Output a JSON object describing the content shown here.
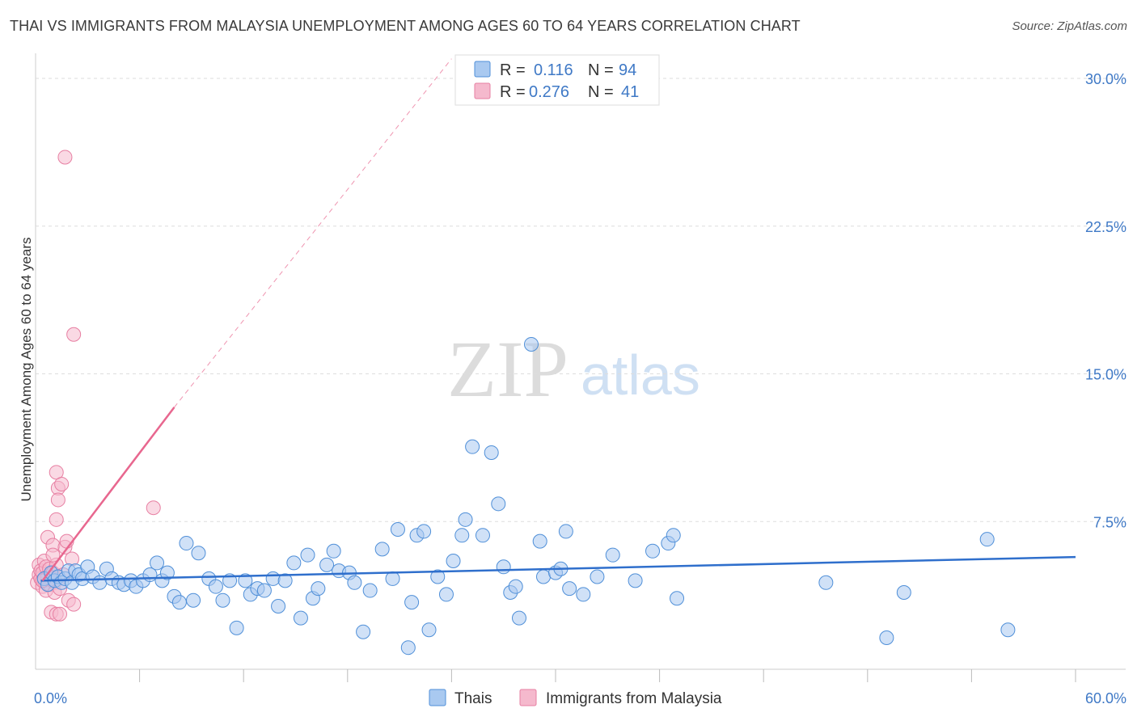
{
  "header": {
    "title": "THAI VS IMMIGRANTS FROM MALAYSIA UNEMPLOYMENT AMONG AGES 60 TO 64 YEARS CORRELATION CHART",
    "source": "Source: ZipAtlas.com"
  },
  "watermark": {
    "zip": "ZIP",
    "atlas": "atlas"
  },
  "colors": {
    "blue_fill": "#a9c9f0",
    "blue_stroke": "#4f8fd8",
    "blue_line": "#2f6fcc",
    "pink_fill": "#f5b9cd",
    "pink_stroke": "#e77fa2",
    "pink_line": "#e8678f",
    "grid": "#dddddd",
    "tick_text": "#3f79c6"
  },
  "legend": {
    "r_label": "R =",
    "n_label": "N =",
    "series1": {
      "r_value": "0.116",
      "n_value": "94"
    },
    "series2": {
      "r_value": "0.276",
      "n_value": "41"
    }
  },
  "chart_data": {
    "type": "scatter",
    "title": "THAI VS IMMIGRANTS FROM MALAYSIA UNEMPLOYMENT AMONG AGES 60 TO 64 YEARS CORRELATION CHART",
    "xlabel": "",
    "ylabel": "Unemployment Among Ages 60 to 64 years",
    "xlim": [
      0,
      60
    ],
    "ylim": [
      0,
      31
    ],
    "x_tick_labels": [
      "0.0%",
      "60.0%"
    ],
    "y_ticks": [
      7.5,
      15.0,
      22.5,
      30.0
    ],
    "y_tick_labels": [
      "7.5%",
      "15.0%",
      "22.5%",
      "30.0%"
    ],
    "grid": true,
    "legend_position": "top-center",
    "series": [
      {
        "name": "Thais",
        "r": 0.116,
        "n": 94,
        "trend": {
          "x": [
            0.3,
            60.0
          ],
          "y": [
            4.5,
            5.7
          ],
          "dashed_extension": false
        },
        "points": [
          [
            0.5,
            4.6
          ],
          [
            0.7,
            4.3
          ],
          [
            0.9,
            4.9
          ],
          [
            1.1,
            4.5
          ],
          [
            1.3,
            4.7
          ],
          [
            1.5,
            4.4
          ],
          [
            1.7,
            4.6
          ],
          [
            1.9,
            5.0
          ],
          [
            2.1,
            4.4
          ],
          [
            2.3,
            5.0
          ],
          [
            2.5,
            4.8
          ],
          [
            2.7,
            4.6
          ],
          [
            3.0,
            5.2
          ],
          [
            3.3,
            4.7
          ],
          [
            3.7,
            4.4
          ],
          [
            4.1,
            5.1
          ],
          [
            4.4,
            4.6
          ],
          [
            4.8,
            4.4
          ],
          [
            5.1,
            4.3
          ],
          [
            5.5,
            4.5
          ],
          [
            5.8,
            4.2
          ],
          [
            6.2,
            4.5
          ],
          [
            6.6,
            4.8
          ],
          [
            7.0,
            5.4
          ],
          [
            7.3,
            4.5
          ],
          [
            7.6,
            4.9
          ],
          [
            8.0,
            3.7
          ],
          [
            8.3,
            3.4
          ],
          [
            8.7,
            6.4
          ],
          [
            9.1,
            3.5
          ],
          [
            9.4,
            5.9
          ],
          [
            10.0,
            4.6
          ],
          [
            10.4,
            4.2
          ],
          [
            10.8,
            3.5
          ],
          [
            11.2,
            4.5
          ],
          [
            11.6,
            2.1
          ],
          [
            12.1,
            4.5
          ],
          [
            12.4,
            3.8
          ],
          [
            12.8,
            4.1
          ],
          [
            13.2,
            4.0
          ],
          [
            13.7,
            4.6
          ],
          [
            14.0,
            3.2
          ],
          [
            14.4,
            4.5
          ],
          [
            14.9,
            5.4
          ],
          [
            15.3,
            2.6
          ],
          [
            15.7,
            5.8
          ],
          [
            16.0,
            3.6
          ],
          [
            16.3,
            4.1
          ],
          [
            16.8,
            5.3
          ],
          [
            17.2,
            6.0
          ],
          [
            17.5,
            5.0
          ],
          [
            18.1,
            4.9
          ],
          [
            18.4,
            4.4
          ],
          [
            18.9,
            1.9
          ],
          [
            19.3,
            4.0
          ],
          [
            20.0,
            6.1
          ],
          [
            20.6,
            4.6
          ],
          [
            20.9,
            7.1
          ],
          [
            21.5,
            1.1
          ],
          [
            21.7,
            3.4
          ],
          [
            22.0,
            6.8
          ],
          [
            22.4,
            7.0
          ],
          [
            22.7,
            2.0
          ],
          [
            23.2,
            4.7
          ],
          [
            23.7,
            3.8
          ],
          [
            24.1,
            5.5
          ],
          [
            24.6,
            6.8
          ],
          [
            24.8,
            7.6
          ],
          [
            25.2,
            11.3
          ],
          [
            25.8,
            6.8
          ],
          [
            26.3,
            11.0
          ],
          [
            26.7,
            8.4
          ],
          [
            27.0,
            5.2
          ],
          [
            27.4,
            3.9
          ],
          [
            27.7,
            4.2
          ],
          [
            27.9,
            2.6
          ],
          [
            28.6,
            16.5
          ],
          [
            29.1,
            6.5
          ],
          [
            29.3,
            4.7
          ],
          [
            30.0,
            4.9
          ],
          [
            30.3,
            5.1
          ],
          [
            30.6,
            7.0
          ],
          [
            30.8,
            4.1
          ],
          [
            31.6,
            3.8
          ],
          [
            32.4,
            4.7
          ],
          [
            33.3,
            5.8
          ],
          [
            34.6,
            4.5
          ],
          [
            35.6,
            6.0
          ],
          [
            36.5,
            6.4
          ],
          [
            36.8,
            6.8
          ],
          [
            37.0,
            3.6
          ],
          [
            45.6,
            4.4
          ],
          [
            49.1,
            1.6
          ],
          [
            50.1,
            3.9
          ],
          [
            54.9,
            6.6
          ],
          [
            56.1,
            2.0
          ]
        ]
      },
      {
        "name": "Immigrants from Malaysia",
        "r": 0.276,
        "n": 41,
        "trend": {
          "x": [
            0.4,
            8.0
          ],
          "y": [
            4.5,
            13.3
          ],
          "dashed_extension": true,
          "dashed_to": {
            "x": 24.0,
            "y": 31.0
          }
        },
        "points": [
          [
            0.1,
            4.4
          ],
          [
            0.2,
            4.8
          ],
          [
            0.2,
            5.3
          ],
          [
            0.3,
            4.6
          ],
          [
            0.3,
            5.0
          ],
          [
            0.4,
            4.2
          ],
          [
            0.4,
            4.9
          ],
          [
            0.5,
            5.5
          ],
          [
            0.5,
            4.5
          ],
          [
            0.6,
            5.2
          ],
          [
            0.6,
            4.0
          ],
          [
            0.7,
            4.7
          ],
          [
            0.7,
            6.7
          ],
          [
            0.8,
            4.3
          ],
          [
            0.8,
            5.1
          ],
          [
            0.9,
            4.6
          ],
          [
            0.9,
            2.9
          ],
          [
            1.0,
            4.9
          ],
          [
            1.0,
            6.3
          ],
          [
            1.1,
            4.4
          ],
          [
            1.1,
            3.9
          ],
          [
            1.2,
            5.3
          ],
          [
            1.0,
            5.8
          ],
          [
            1.2,
            7.6
          ],
          [
            1.2,
            10.0
          ],
          [
            1.3,
            9.2
          ],
          [
            1.3,
            8.6
          ],
          [
            1.4,
            4.1
          ],
          [
            1.2,
            2.8
          ],
          [
            1.4,
            2.8
          ],
          [
            1.5,
            9.4
          ],
          [
            1.6,
            4.8
          ],
          [
            1.7,
            6.2
          ],
          [
            1.7,
            26.0
          ],
          [
            1.8,
            6.5
          ],
          [
            1.9,
            3.5
          ],
          [
            2.1,
            5.6
          ],
          [
            2.2,
            3.3
          ],
          [
            2.2,
            17.0
          ],
          [
            6.8,
            8.2
          ],
          [
            0.4,
            4.5
          ]
        ]
      }
    ]
  },
  "bottom_legend": {
    "series1": "Thais",
    "series2": "Immigrants from Malaysia"
  }
}
